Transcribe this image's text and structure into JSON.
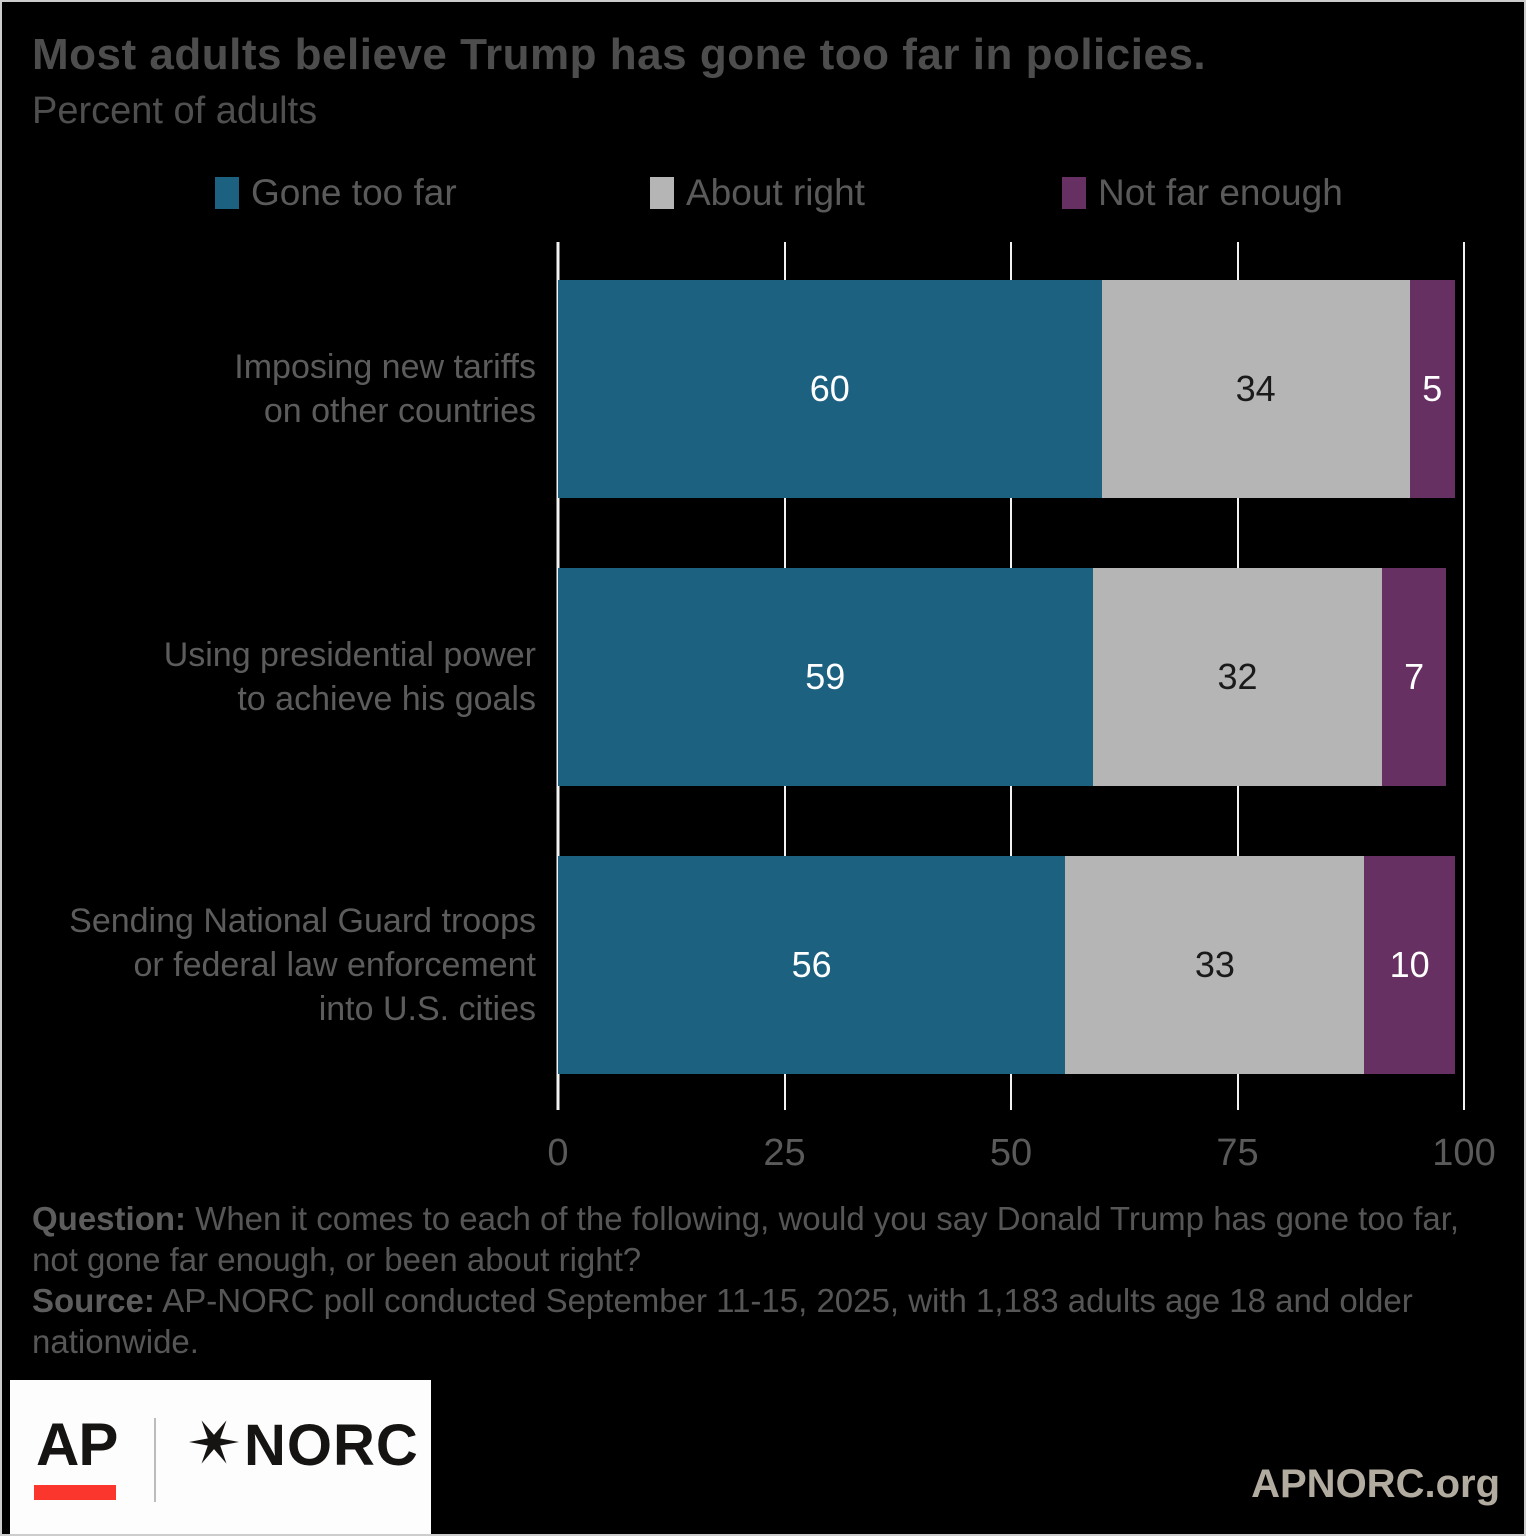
{
  "title": "Most adults believe Trump has gone too far in policies.",
  "subtitle": "Percent of adults",
  "legend": [
    {
      "label": "Gone too far",
      "color": "#1d6180"
    },
    {
      "label": "About right",
      "color": "#b5b5b5"
    },
    {
      "label": "Not far enough",
      "color": "#673063"
    }
  ],
  "chart_data": {
    "type": "bar",
    "orientation": "horizontal",
    "stacked": true,
    "title": "Most adults believe Trump has gone too far in policies.",
    "subtitle": "Percent of adults",
    "categories": [
      [
        "Imposing new tariffs",
        "on other countries"
      ],
      [
        "Using presidential power",
        "to achieve his goals"
      ],
      [
        "Sending National Guard troops",
        "or federal law enforcement",
        "into U.S. cities"
      ]
    ],
    "series": [
      {
        "name": "Gone too far",
        "color": "#1d6180",
        "text_color": "#ffffff",
        "values": [
          60,
          59,
          56
        ]
      },
      {
        "name": "About right",
        "color": "#b5b5b5",
        "text_color": "#1a1a1a",
        "values": [
          34,
          32,
          33
        ]
      },
      {
        "name": "Not far enough",
        "color": "#673063",
        "text_color": "#ffffff",
        "values": [
          5,
          7,
          10
        ]
      }
    ],
    "x_axis": {
      "min": 0,
      "max": 100,
      "ticks": [
        0,
        25,
        50,
        75,
        100
      ]
    },
    "grid": true,
    "legend_position": "top"
  },
  "footer": {
    "question_label": "Question:",
    "question_text": "When it comes to each of the following, would you say Donald Trump has gone too far, not gone far enough, or been about right?",
    "source_label": "Source:",
    "source_text": "AP-NORC poll conducted September 11-15, 2025, with 1,183 adults age 18 and older nationwide."
  },
  "branding": {
    "ap_wordmark": "AP",
    "norc_wordmark": "NORC",
    "website": "APNORC.org",
    "ap_red": "#fb362d",
    "logo_ink": "#161413"
  }
}
